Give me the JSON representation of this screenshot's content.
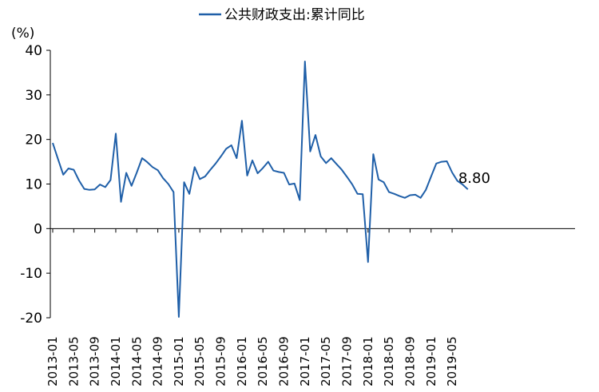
{
  "chart_data": {
    "type": "line",
    "legend": {
      "label": "公共财政支出:累计同比",
      "position": "top"
    },
    "unit": "(%)",
    "ylim": [
      -20,
      40
    ],
    "yticks": [
      "40",
      "30",
      "20",
      "10",
      "0",
      "-10",
      "-20"
    ],
    "xticks": [
      "2013-01",
      "2013-05",
      "2013-09",
      "2014-01",
      "2014-05",
      "2014-09",
      "2015-01",
      "2015-05",
      "2015-09",
      "2016-01",
      "2016-05",
      "2016-09",
      "2017-01",
      "2017-05",
      "2017-09",
      "2018-01",
      "2018-05",
      "2018-09",
      "2019-01",
      "2019-05"
    ],
    "end_label": "8.80",
    "color": "#1f5fa8",
    "series": [
      {
        "values": [
          [
            "2013-01",
            19.2
          ],
          [
            "2013-02",
            15.6
          ],
          [
            "2013-03",
            12.1
          ],
          [
            "2013-04",
            13.5
          ],
          [
            "2013-05",
            13.2
          ],
          [
            "2013-06",
            10.8
          ],
          [
            "2013-07",
            8.9
          ],
          [
            "2013-08",
            8.7
          ],
          [
            "2013-09",
            8.8
          ],
          [
            "2013-10",
            9.9
          ],
          [
            "2013-11",
            9.3
          ],
          [
            "2013-12",
            10.9
          ],
          [
            "2014-01",
            21.3
          ],
          [
            "2014-02",
            6.0
          ],
          [
            "2014-03",
            12.5
          ],
          [
            "2014-04",
            9.6
          ],
          [
            "2014-05",
            12.6
          ],
          [
            "2014-06",
            15.8
          ],
          [
            "2014-07",
            14.9
          ],
          [
            "2014-08",
            13.8
          ],
          [
            "2014-09",
            13.1
          ],
          [
            "2014-10",
            11.3
          ],
          [
            "2014-11",
            10.0
          ],
          [
            "2014-12",
            8.2
          ],
          [
            "2015-01",
            -19.8
          ],
          [
            "2015-02",
            10.4
          ],
          [
            "2015-03",
            7.8
          ],
          [
            "2015-04",
            13.8
          ],
          [
            "2015-05",
            11.1
          ],
          [
            "2015-06",
            11.7
          ],
          [
            "2015-07",
            13.2
          ],
          [
            "2015-08",
            14.6
          ],
          [
            "2015-09",
            16.2
          ],
          [
            "2015-10",
            17.9
          ],
          [
            "2015-11",
            18.7
          ],
          [
            "2015-12",
            15.8
          ],
          [
            "2016-01",
            24.2
          ],
          [
            "2016-02",
            11.9
          ],
          [
            "2016-03",
            15.3
          ],
          [
            "2016-04",
            12.4
          ],
          [
            "2016-05",
            13.6
          ],
          [
            "2016-06",
            15.0
          ],
          [
            "2016-07",
            13.0
          ],
          [
            "2016-08",
            12.7
          ],
          [
            "2016-09",
            12.5
          ],
          [
            "2016-10",
            9.9
          ],
          [
            "2016-11",
            10.1
          ],
          [
            "2016-12",
            6.4
          ],
          [
            "2017-01",
            37.5
          ],
          [
            "2017-02",
            17.3
          ],
          [
            "2017-03",
            21.0
          ],
          [
            "2017-04",
            16.2
          ],
          [
            "2017-05",
            14.7
          ],
          [
            "2017-06",
            15.8
          ],
          [
            "2017-07",
            14.5
          ],
          [
            "2017-08",
            13.2
          ],
          [
            "2017-09",
            11.6
          ],
          [
            "2017-10",
            9.9
          ],
          [
            "2017-11",
            7.8
          ],
          [
            "2017-12",
            7.7
          ],
          [
            "2018-01",
            -7.5
          ],
          [
            "2018-02",
            16.7
          ],
          [
            "2018-03",
            11.0
          ],
          [
            "2018-04",
            10.4
          ],
          [
            "2018-05",
            8.2
          ],
          [
            "2018-06",
            7.8
          ],
          [
            "2018-07",
            7.3
          ],
          [
            "2018-08",
            6.9
          ],
          [
            "2018-09",
            7.5
          ],
          [
            "2018-10",
            7.6
          ],
          [
            "2018-11",
            6.9
          ],
          [
            "2018-12",
            8.7
          ],
          [
            "2019-01",
            11.7
          ],
          [
            "2019-02",
            14.6
          ],
          [
            "2019-03",
            15.0
          ],
          [
            "2019-04",
            15.1
          ],
          [
            "2019-05",
            12.6
          ],
          [
            "2019-06",
            10.7
          ],
          [
            "2019-07",
            9.9
          ],
          [
            "2019-08",
            8.8
          ]
        ]
      }
    ]
  }
}
